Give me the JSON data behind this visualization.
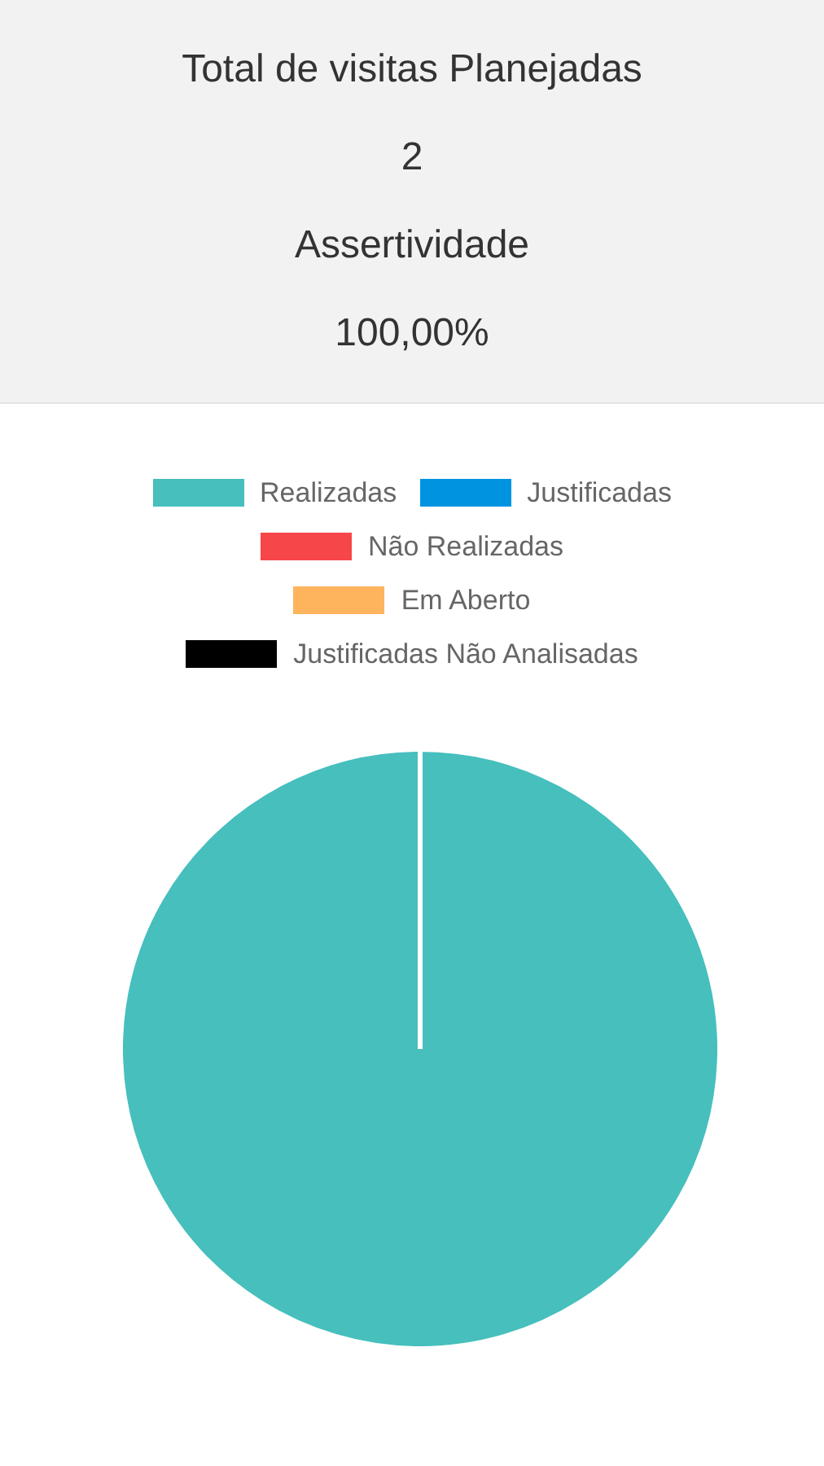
{
  "chart_data": [
    {
      "type": "other",
      "annotations": [
        "Total de visitas Planejadas",
        "2",
        "Assertividade",
        "100,00%"
      ]
    },
    {
      "type": "pie",
      "categories": [
        "Realizadas",
        "Justificadas",
        "Não Realizadas",
        "Em Aberto",
        "Justificadas Não Analisadas"
      ],
      "values": [
        100,
        0,
        0,
        0,
        0
      ],
      "colors": [
        "#46bfbd",
        "#0094e0",
        "#f7464a",
        "#fdb45c",
        "#000000"
      ],
      "legend": "top"
    }
  ]
}
